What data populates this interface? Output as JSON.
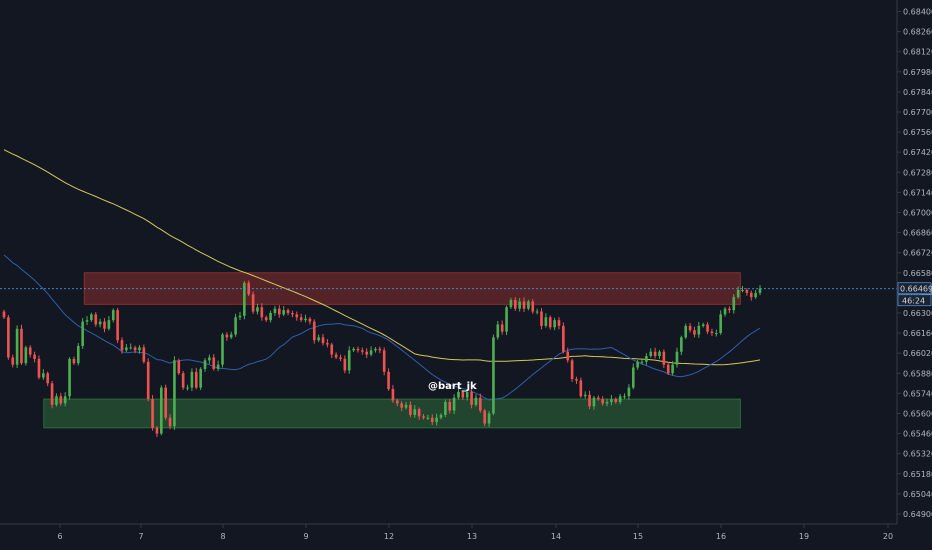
{
  "chart_data": {
    "type": "candlestick",
    "title": "",
    "watermark": "@bart_jk",
    "xlabel": "",
    "ylabel": "",
    "x_ticks": [
      "6",
      "7",
      "8",
      "9",
      "12",
      "13",
      "14",
      "15",
      "16",
      "19",
      "20"
    ],
    "y_ticks": [
      "0.68400",
      "0.68260",
      "0.68120",
      "0.67980",
      "0.67840",
      "0.67700",
      "0.67560",
      "0.67420",
      "0.67280",
      "0.67140",
      "0.67000",
      "0.66860",
      "0.66720",
      "0.66580",
      "0.66440",
      "0.66300",
      "0.66160",
      "0.66020",
      "0.65880",
      "0.65740",
      "0.65600",
      "0.65460",
      "0.65320",
      "0.65180",
      "0.65040",
      "0.64900"
    ],
    "ylim": [
      0.6483,
      0.6848
    ],
    "last_price": {
      "value": "0.66469",
      "countdown": "46:24"
    },
    "zones": [
      {
        "name": "resistance",
        "low": 0.6636,
        "high": 0.6658,
        "color": "#8b2d2d",
        "from_day": 6.3,
        "to_day": 16.7
      },
      {
        "name": "support",
        "low": 0.655,
        "high": 0.657,
        "color": "#2d6b3a",
        "from_day": 5.8,
        "to_day": 16.7
      }
    ],
    "series": [
      {
        "role": "price",
        "color_up": "#4caf50",
        "color_down": "#ef5350",
        "close": [
          0.6627,
          0.6599,
          0.6594,
          0.6619,
          0.6595,
          0.6606,
          0.6601,
          0.6598,
          0.6585,
          0.6588,
          0.6581,
          0.6566,
          0.6572,
          0.6567,
          0.6572,
          0.6598,
          0.6595,
          0.6607,
          0.6624,
          0.6625,
          0.6629,
          0.6622,
          0.6624,
          0.6619,
          0.6625,
          0.6632,
          0.6611,
          0.6604,
          0.6606,
          0.6606,
          0.6604,
          0.6606,
          0.6596,
          0.657,
          0.655,
          0.6546,
          0.6578,
          0.6557,
          0.6551,
          0.6597,
          0.6588,
          0.6578,
          0.6578,
          0.6589,
          0.6578,
          0.6591,
          0.6597,
          0.6599,
          0.6591,
          0.6594,
          0.6615,
          0.6613,
          0.6615,
          0.6627,
          0.6628,
          0.6651,
          0.6643,
          0.6631,
          0.6634,
          0.6627,
          0.6625,
          0.663,
          0.6633,
          0.6629,
          0.6632,
          0.663,
          0.6629,
          0.6627,
          0.6625,
          0.6626,
          0.6624,
          0.6611,
          0.6613,
          0.6609,
          0.6608,
          0.6601,
          0.6599,
          0.6598,
          0.659,
          0.6604,
          0.6605,
          0.6604,
          0.6603,
          0.6601,
          0.6604,
          0.6605,
          0.6604,
          0.6589,
          0.6577,
          0.6569,
          0.6567,
          0.6564,
          0.6566,
          0.6559,
          0.6563,
          0.6558,
          0.6557,
          0.6557,
          0.6554,
          0.6557,
          0.6559,
          0.6568,
          0.6562,
          0.6571,
          0.6575,
          0.6571,
          0.6575,
          0.6566,
          0.6571,
          0.6562,
          0.6553,
          0.656,
          0.6613,
          0.6622,
          0.6617,
          0.6634,
          0.6639,
          0.6633,
          0.6638,
          0.6633,
          0.6638,
          0.6631,
          0.6631,
          0.6621,
          0.6627,
          0.662,
          0.6625,
          0.6621,
          0.6603,
          0.6597,
          0.6584,
          0.6583,
          0.6572,
          0.6573,
          0.6565,
          0.6571,
          0.657,
          0.6567,
          0.6568,
          0.657,
          0.6568,
          0.6572,
          0.6572,
          0.6578,
          0.6592,
          0.6596,
          0.6596,
          0.66,
          0.6603,
          0.66,
          0.6603,
          0.6594,
          0.6588,
          0.6594,
          0.6603,
          0.6613,
          0.6621,
          0.6618,
          0.6615,
          0.6621,
          0.6622,
          0.6617,
          0.6616,
          0.6616,
          0.6629,
          0.6633,
          0.6632,
          0.6641,
          0.6646,
          0.6646,
          0.6644,
          0.6641,
          0.6644,
          0.6647
        ]
      },
      {
        "role": "moving-average-long",
        "color": "#d4c85a"
      },
      {
        "role": "moving-average-short",
        "color": "#2e5fae"
      }
    ]
  }
}
